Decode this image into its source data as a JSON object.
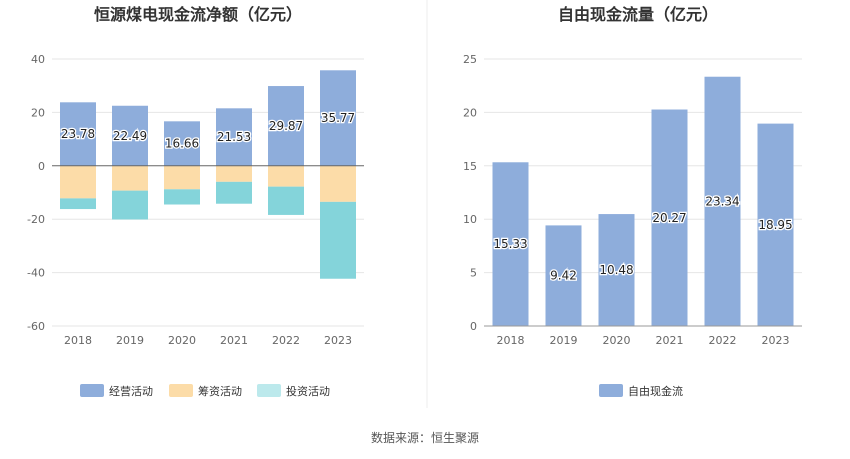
{
  "source": "数据来源：恒生聚源",
  "colors": {
    "operating": "#8eaddb",
    "financing": "#fcdca8",
    "investing": "#84d4da",
    "investing_legend": "#bce9ec",
    "fcf": "#8eaddb",
    "grid": "#e6e6e6",
    "axis": "#999999",
    "divider": "#eeeeee"
  },
  "chart_data": [
    {
      "type": "bar",
      "stacked": true,
      "title": "恒源煤电现金流净额（亿元）",
      "categories": [
        "2018",
        "2019",
        "2020",
        "2021",
        "2022",
        "2023"
      ],
      "ylim": [
        -60,
        40
      ],
      "yticks": [
        "40",
        "20",
        "0",
        "-20",
        "-40",
        "-60"
      ],
      "legend_position": "bottom",
      "series": [
        {
          "name": "经营活动",
          "values": [
            23.78,
            22.49,
            16.66,
            21.53,
            29.87,
            35.77
          ],
          "labels": [
            "23.78",
            "22.49",
            "16.66",
            "21.53",
            "29.87",
            "35.77"
          ]
        },
        {
          "name": "筹资活动",
          "values": [
            -12.2,
            -9.3,
            -8.8,
            -6.0,
            -7.8,
            -13.5
          ]
        },
        {
          "name": "投资活动",
          "values": [
            -4.0,
            -10.8,
            -5.7,
            -8.2,
            -10.6,
            -28.8
          ]
        }
      ]
    },
    {
      "type": "bar",
      "title": "自由现金流量（亿元）",
      "categories": [
        "2018",
        "2019",
        "2020",
        "2021",
        "2022",
        "2023"
      ],
      "ylim": [
        0,
        25
      ],
      "yticks": [
        "25",
        "20",
        "15",
        "10",
        "5",
        "0"
      ],
      "legend_position": "bottom",
      "series": [
        {
          "name": "自由现金流",
          "values": [
            15.33,
            9.42,
            10.48,
            20.27,
            23.34,
            18.95
          ],
          "labels": [
            "15.33",
            "9.42",
            "10.48",
            "20.27",
            "23.34",
            "18.95"
          ]
        }
      ]
    }
  ]
}
